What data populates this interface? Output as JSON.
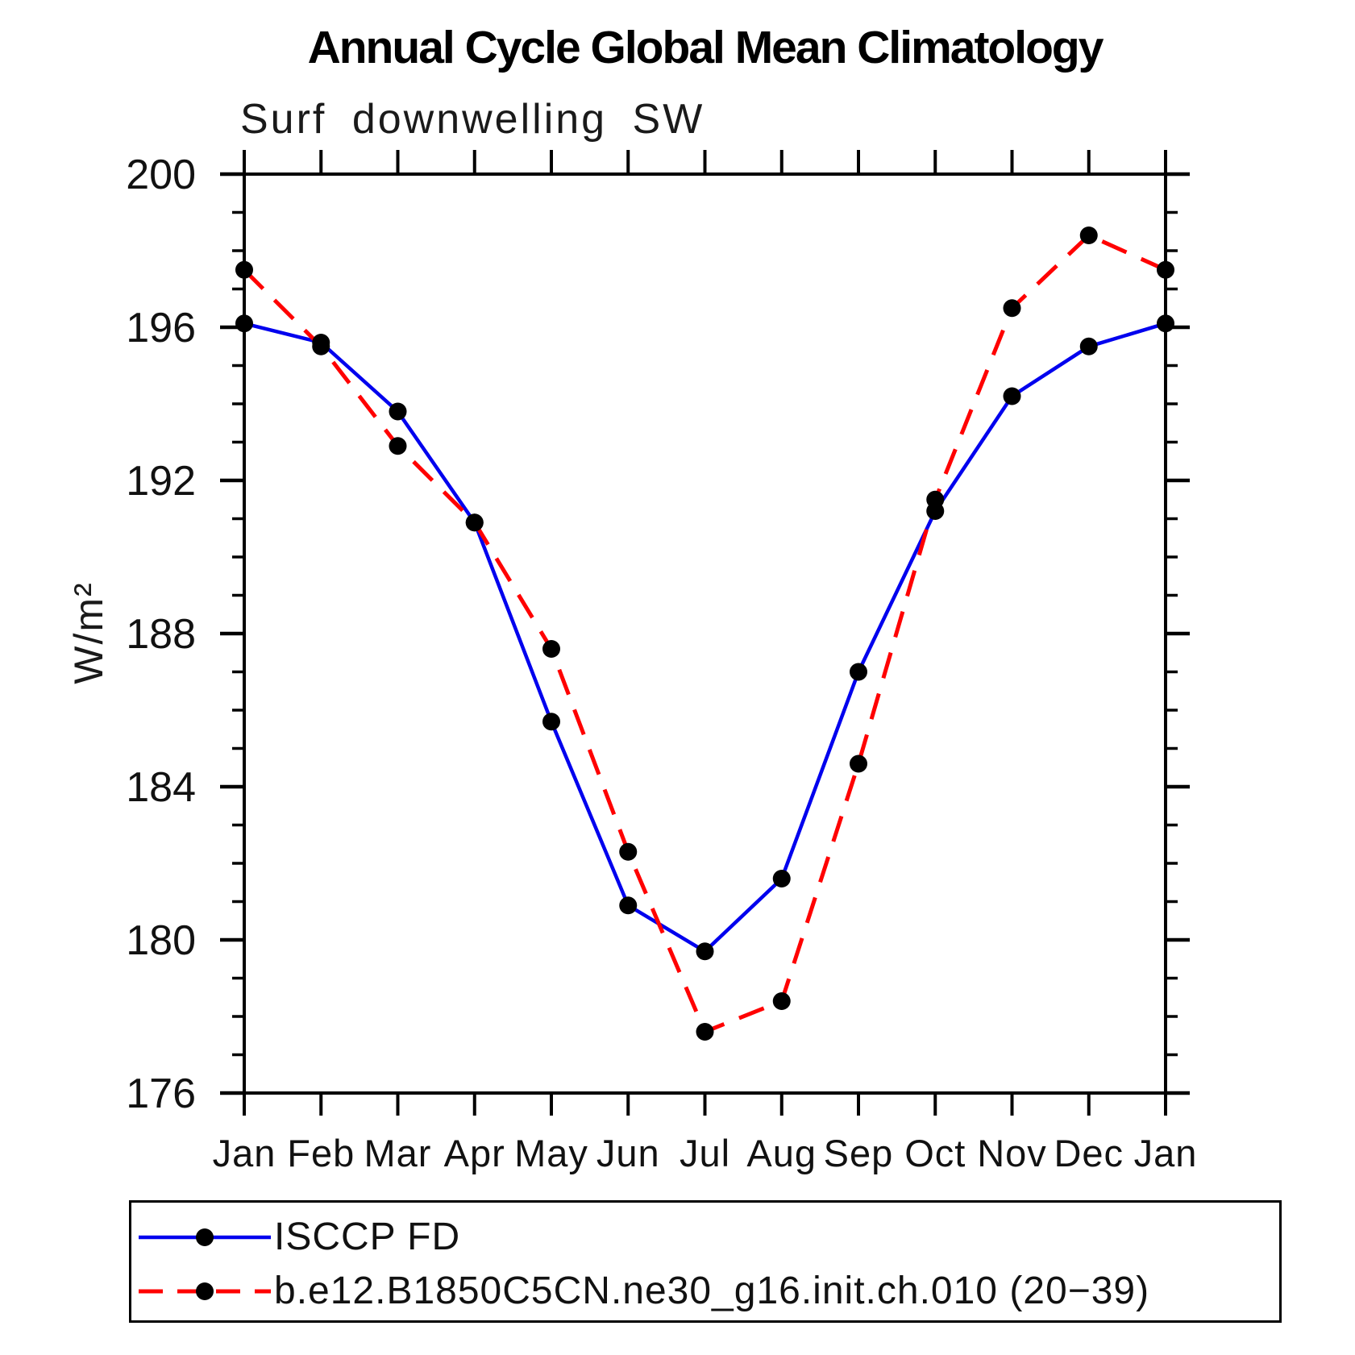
{
  "chart_data": {
    "type": "line",
    "title": "Annual Cycle Global Mean Climatology",
    "subtitle": "Surf downwelling SW",
    "ylabel": "W/m²",
    "xlabel": "",
    "categories": [
      "Jan",
      "Feb",
      "Mar",
      "Apr",
      "May",
      "Jun",
      "Jul",
      "Aug",
      "Sep",
      "Oct",
      "Nov",
      "Dec",
      "Jan"
    ],
    "ylim": [
      176,
      200
    ],
    "y_major_tick_step": 4,
    "y_minor_tick_step": 1,
    "y_major_ticks": [
      176,
      180,
      184,
      188,
      192,
      196,
      200
    ],
    "grid": false,
    "legend_position": "bottom",
    "frame_color": "#000000",
    "marker_color": "#000000",
    "series": [
      {
        "name": "ISCCP FD",
        "color": "#0000ee",
        "style": "solid",
        "marker": "circle",
        "values": [
          196.1,
          195.6,
          193.8,
          190.9,
          185.7,
          180.9,
          179.7,
          181.6,
          187.0,
          191.2,
          194.2,
          195.5,
          196.1
        ]
      },
      {
        "name": "b.e12.B1850C5CN.ne30_g16.init.ch.010 (20−39)",
        "color": "#ff0000",
        "style": "dashed",
        "marker": "circle",
        "values": [
          197.5,
          195.5,
          192.9,
          190.9,
          187.6,
          182.3,
          177.6,
          178.4,
          184.6,
          191.5,
          196.5,
          198.4,
          197.5
        ]
      }
    ]
  }
}
